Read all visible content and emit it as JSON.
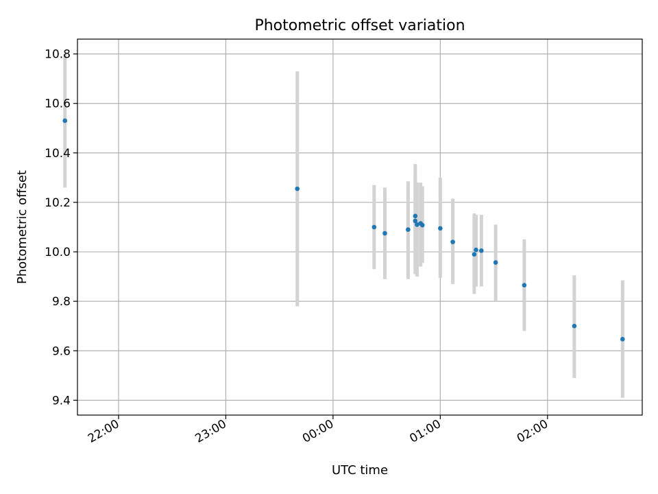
{
  "chart_data": {
    "type": "scatter",
    "title": "Photometric offset variation",
    "xlabel": "UTC time",
    "ylabel": "Photometric offset",
    "x_unit": "UTC time (HH:MM, spanning midnight)",
    "xlim": [
      "21:37",
      "02:53"
    ],
    "ylim": [
      9.34,
      10.86
    ],
    "x_ticks": [
      "22:00",
      "23:00",
      "00:00",
      "01:00",
      "02:00"
    ],
    "y_ticks": [
      9.4,
      9.6,
      9.8,
      10.0,
      10.2,
      10.4,
      10.6,
      10.8
    ],
    "grid": true,
    "legend": "none",
    "point_color": "#1f77b4",
    "errorbar_color": "#d3d3d3",
    "series": [
      {
        "points": [
          {
            "x": "21:30",
            "y": 10.53,
            "ymin": 10.26,
            "ymax": 10.8
          },
          {
            "x": "23:40",
            "y": 10.255,
            "ymin": 9.78,
            "ymax": 10.73
          },
          {
            "x": "00:23",
            "y": 10.1,
            "ymin": 9.93,
            "ymax": 10.27
          },
          {
            "x": "00:29",
            "y": 10.075,
            "ymin": 9.89,
            "ymax": 10.26
          },
          {
            "x": "00:42",
            "y": 10.09,
            "ymin": 9.89,
            "ymax": 10.285
          },
          {
            "x": "00:46",
            "y": 10.145,
            "ymin": 9.935,
            "ymax": 10.355
          },
          {
            "x": "00:46",
            "y": 10.125,
            "ymin": 9.91,
            "ymax": 10.31
          },
          {
            "x": "00:47",
            "y": 10.11,
            "ymin": 9.9,
            "ymax": 10.28
          },
          {
            "x": "00:49",
            "y": 10.115,
            "ymin": 9.94,
            "ymax": 10.28
          },
          {
            "x": "00:50",
            "y": 10.108,
            "ymin": 9.955,
            "ymax": 10.265
          },
          {
            "x": "01:00",
            "y": 10.095,
            "ymin": 9.895,
            "ymax": 10.3
          },
          {
            "x": "01:07",
            "y": 10.04,
            "ymin": 9.87,
            "ymax": 10.215
          },
          {
            "x": "01:19",
            "y": 9.99,
            "ymin": 9.83,
            "ymax": 10.155
          },
          {
            "x": "01:20",
            "y": 10.008,
            "ymin": 9.86,
            "ymax": 10.15
          },
          {
            "x": "01:23",
            "y": 10.005,
            "ymin": 9.86,
            "ymax": 10.15
          },
          {
            "x": "01:31",
            "y": 9.957,
            "ymin": 9.8,
            "ymax": 10.11
          },
          {
            "x": "01:47",
            "y": 9.865,
            "ymin": 9.68,
            "ymax": 10.05
          },
          {
            "x": "02:15",
            "y": 9.7,
            "ymin": 9.49,
            "ymax": 9.905
          },
          {
            "x": "02:42",
            "y": 9.647,
            "ymin": 9.41,
            "ymax": 9.885
          }
        ]
      }
    ]
  }
}
